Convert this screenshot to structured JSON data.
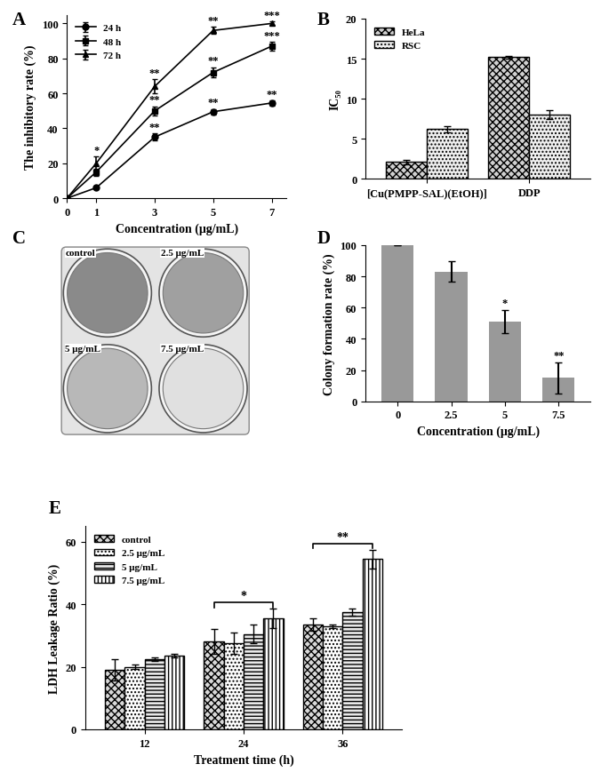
{
  "chart_data": [
    {
      "panel": "A",
      "type": "line",
      "x": [
        0,
        1,
        3,
        5,
        7
      ],
      "xlim": [
        0,
        7.5
      ],
      "xticks": [
        0,
        1,
        3,
        5,
        7
      ],
      "ylim": [
        0,
        105
      ],
      "yticks": [
        0,
        20,
        40,
        60,
        80,
        100
      ],
      "x_label": "Concentration (μg/mL)",
      "y_label": "The inhibitory rate (%)",
      "legend": "upper left",
      "series": [
        {
          "name": "24 h",
          "color": "#000000",
          "marker": "circle",
          "values": [
            0,
            6,
            35,
            49.5,
            54.5
          ],
          "errors": [
            0,
            0.5,
            2,
            1.5,
            1.5
          ],
          "significance": [
            null,
            null,
            "**",
            "**",
            "**"
          ]
        },
        {
          "name": "48 h",
          "color": "#000000",
          "marker": "square",
          "values": [
            0,
            15,
            50,
            72,
            87
          ],
          "errors": [
            0,
            2,
            2.5,
            3,
            2.5
          ],
          "significance": [
            null,
            null,
            "**",
            "**",
            "***"
          ]
        },
        {
          "name": "72 h",
          "color": "#000000",
          "marker": "triangle",
          "values": [
            0,
            20,
            64,
            96,
            100
          ],
          "errors": [
            0,
            4,
            4,
            2,
            1
          ],
          "significance": [
            null,
            "*",
            "**",
            "**",
            "***"
          ]
        }
      ]
    },
    {
      "panel": "B",
      "type": "bar",
      "categories": [
        "[Cu(PMPP-SAL)(EtOH)]",
        "DDP"
      ],
      "ylim": [
        0,
        20
      ],
      "yticks": [
        0,
        5,
        10,
        15,
        20
      ],
      "y_label": "IC₅₀",
      "legend": "upper left",
      "series": [
        {
          "name": "HeLa",
          "color": "#d0d0d0",
          "values": [
            2.1,
            15.2
          ],
          "errors": [
            0.3,
            0.15
          ]
        },
        {
          "name": "RSC",
          "color": "#f0f0f0",
          "values": [
            6.2,
            8.0
          ],
          "errors": [
            0.4,
            0.6
          ]
        }
      ]
    },
    {
      "panel": "C",
      "type": "image",
      "labels": [
        "control",
        "2.5 μg/mL",
        "5 μg/mL",
        "7.5 μg/mL"
      ]
    },
    {
      "panel": "D",
      "type": "bar",
      "categories": [
        "0",
        "2.5",
        "5",
        "7.5"
      ],
      "values": [
        100,
        83,
        51,
        15
      ],
      "errors": [
        0,
        6.5,
        7.5,
        10
      ],
      "significance": [
        null,
        null,
        "*",
        "**"
      ],
      "color": "#999999",
      "ylim": [
        0,
        100
      ],
      "yticks": [
        0,
        20,
        40,
        60,
        80,
        100
      ],
      "x_label": "Concentration (μg/mL)",
      "y_label": "Colony formation rate (%)"
    },
    {
      "panel": "E",
      "type": "bar",
      "categories": [
        "12",
        "24",
        "36"
      ],
      "ylim": [
        0,
        65
      ],
      "yticks": [
        0,
        20,
        40,
        60
      ],
      "x_label": "Treatment time (h)",
      "y_label": "LDH Leakage Ratio (%)",
      "legend": "upper left",
      "series": [
        {
          "name": "control",
          "color": "#d8d8d8",
          "values": [
            19,
            28,
            33.5
          ],
          "errors": [
            3.5,
            4,
            2
          ]
        },
        {
          "name": "2.5 μg/mL",
          "color": "#ffffff",
          "values": [
            20,
            27.5,
            33
          ],
          "errors": [
            0.7,
            3.5,
            0.5
          ]
        },
        {
          "name": "5 μg/mL",
          "color": "#e8e8e8",
          "values": [
            22.5,
            30.5,
            37.5
          ],
          "errors": [
            0.5,
            3,
            1
          ]
        },
        {
          "name": "7.5 μg/mL",
          "color": "#ffffff",
          "values": [
            23.5,
            35.5,
            54.5
          ],
          "errors": [
            0.5,
            3,
            3
          ]
        }
      ],
      "brackets": [
        {
          "category": "24",
          "label": "*"
        },
        {
          "category": "36",
          "label": "**"
        }
      ]
    }
  ]
}
